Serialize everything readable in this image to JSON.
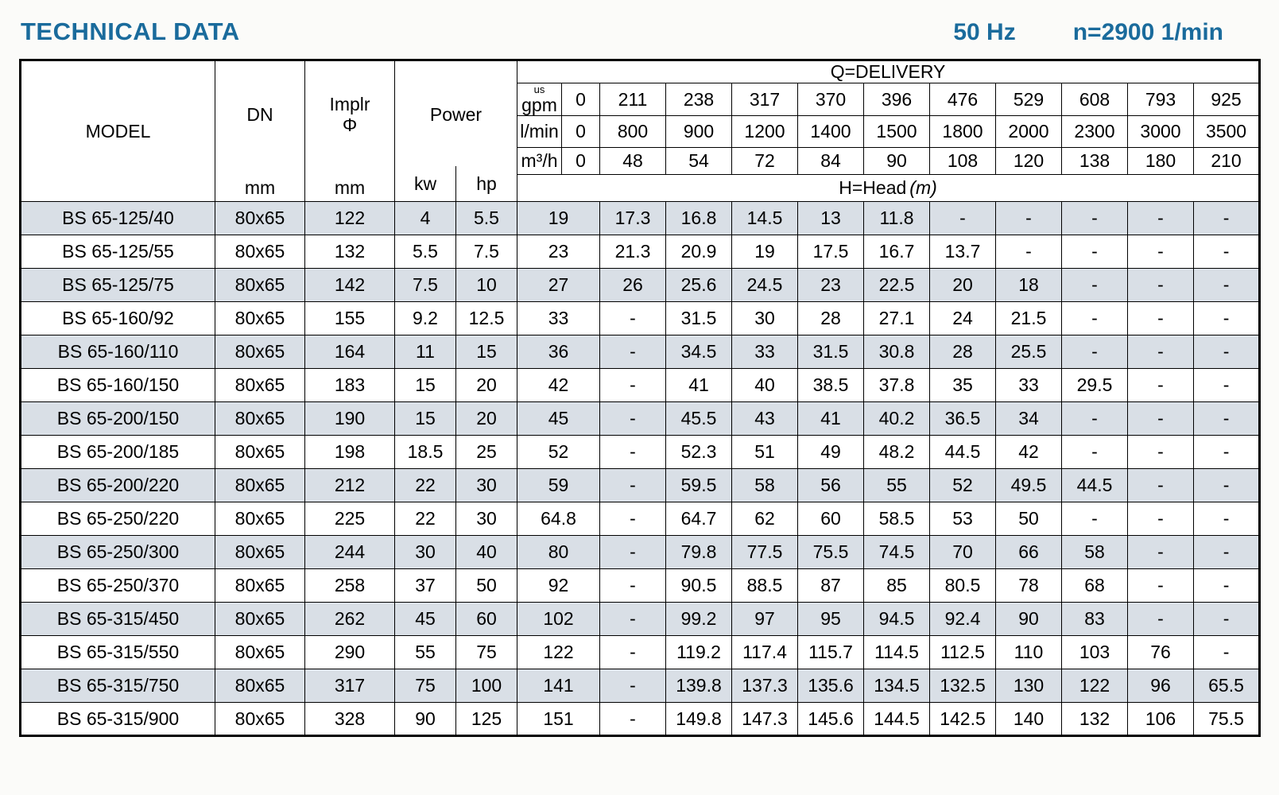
{
  "page": {
    "title": "TECHNICAL DATA",
    "frequency": "50 Hz",
    "speed": "n=2900 1/min"
  },
  "colors": {
    "accent": "#1a6b9c",
    "row_shade": "#d9dfe6",
    "border": "#000000"
  },
  "table": {
    "col_headers": {
      "model": "MODEL",
      "dn": "DN",
      "dn_unit": "mm",
      "implr_line1": "Implr",
      "implr_line2": "Φ",
      "implr_unit": "mm",
      "power": "Power",
      "power_kw": "kw",
      "power_hp": "hp",
      "delivery_title": "Q=DELIVERY",
      "head_title": "H=Head",
      "head_unit": "(m)"
    },
    "unit_rows": [
      {
        "name": "us-gpm",
        "label_top": "us",
        "label": "gpm",
        "values": [
          "0",
          "211",
          "238",
          "317",
          "370",
          "396",
          "476",
          "529",
          "608",
          "793",
          "925"
        ]
      },
      {
        "name": "l-min",
        "label_top": "",
        "label": "l/min",
        "values": [
          "0",
          "800",
          "900",
          "1200",
          "1400",
          "1500",
          "1800",
          "2000",
          "2300",
          "3000",
          "3500"
        ]
      },
      {
        "name": "m3-h",
        "label_top": "",
        "label": "m³/h",
        "values": [
          "0",
          "48",
          "54",
          "72",
          "84",
          "90",
          "108",
          "120",
          "138",
          "180",
          "210"
        ]
      }
    ],
    "rows": [
      {
        "model": "BS 65-125/40",
        "dn": "80x65",
        "implr": "122",
        "kw": "4",
        "hp": "5.5",
        "head": [
          "19",
          "17.3",
          "16.8",
          "14.5",
          "13",
          "11.8",
          "-",
          "-",
          "-",
          "-",
          "-"
        ]
      },
      {
        "model": "BS 65-125/55",
        "dn": "80x65",
        "implr": "132",
        "kw": "5.5",
        "hp": "7.5",
        "head": [
          "23",
          "21.3",
          "20.9",
          "19",
          "17.5",
          "16.7",
          "13.7",
          "-",
          "-",
          "-",
          "-"
        ]
      },
      {
        "model": "BS 65-125/75",
        "dn": "80x65",
        "implr": "142",
        "kw": "7.5",
        "hp": "10",
        "head": [
          "27",
          "26",
          "25.6",
          "24.5",
          "23",
          "22.5",
          "20",
          "18",
          "-",
          "-",
          "-"
        ]
      },
      {
        "model": "BS 65-160/92",
        "dn": "80x65",
        "implr": "155",
        "kw": "9.2",
        "hp": "12.5",
        "head": [
          "33",
          "-",
          "31.5",
          "30",
          "28",
          "27.1",
          "24",
          "21.5",
          "-",
          "-",
          "-"
        ]
      },
      {
        "model": "BS 65-160/110",
        "dn": "80x65",
        "implr": "164",
        "kw": "11",
        "hp": "15",
        "head": [
          "36",
          "-",
          "34.5",
          "33",
          "31.5",
          "30.8",
          "28",
          "25.5",
          "-",
          "-",
          "-"
        ]
      },
      {
        "model": "BS 65-160/150",
        "dn": "80x65",
        "implr": "183",
        "kw": "15",
        "hp": "20",
        "head": [
          "42",
          "-",
          "41",
          "40",
          "38.5",
          "37.8",
          "35",
          "33",
          "29.5",
          "-",
          "-"
        ]
      },
      {
        "model": "BS 65-200/150",
        "dn": "80x65",
        "implr": "190",
        "kw": "15",
        "hp": "20",
        "head": [
          "45",
          "-",
          "45.5",
          "43",
          "41",
          "40.2",
          "36.5",
          "34",
          "-",
          "-",
          "-"
        ]
      },
      {
        "model": "BS 65-200/185",
        "dn": "80x65",
        "implr": "198",
        "kw": "18.5",
        "hp": "25",
        "head": [
          "52",
          "-",
          "52.3",
          "51",
          "49",
          "48.2",
          "44.5",
          "42",
          "-",
          "-",
          "-"
        ]
      },
      {
        "model": "BS 65-200/220",
        "dn": "80x65",
        "implr": "212",
        "kw": "22",
        "hp": "30",
        "head": [
          "59",
          "-",
          "59.5",
          "58",
          "56",
          "55",
          "52",
          "49.5",
          "44.5",
          "-",
          "-"
        ]
      },
      {
        "model": "BS 65-250/220",
        "dn": "80x65",
        "implr": "225",
        "kw": "22",
        "hp": "30",
        "head": [
          "64.8",
          "-",
          "64.7",
          "62",
          "60",
          "58.5",
          "53",
          "50",
          "-",
          "-",
          "-"
        ]
      },
      {
        "model": "BS 65-250/300",
        "dn": "80x65",
        "implr": "244",
        "kw": "30",
        "hp": "40",
        "head": [
          "80",
          "-",
          "79.8",
          "77.5",
          "75.5",
          "74.5",
          "70",
          "66",
          "58",
          "-",
          "-"
        ]
      },
      {
        "model": "BS 65-250/370",
        "dn": "80x65",
        "implr": "258",
        "kw": "37",
        "hp": "50",
        "head": [
          "92",
          "-",
          "90.5",
          "88.5",
          "87",
          "85",
          "80.5",
          "78",
          "68",
          "-",
          "-"
        ]
      },
      {
        "model": "BS 65-315/450",
        "dn": "80x65",
        "implr": "262",
        "kw": "45",
        "hp": "60",
        "head": [
          "102",
          "-",
          "99.2",
          "97",
          "95",
          "94.5",
          "92.4",
          "90",
          "83",
          "-",
          "-"
        ]
      },
      {
        "model": "BS 65-315/550",
        "dn": "80x65",
        "implr": "290",
        "kw": "55",
        "hp": "75",
        "head": [
          "122",
          "-",
          "119.2",
          "117.4",
          "115.7",
          "114.5",
          "112.5",
          "110",
          "103",
          "76",
          "-"
        ]
      },
      {
        "model": "BS 65-315/750",
        "dn": "80x65",
        "implr": "317",
        "kw": "75",
        "hp": "100",
        "head": [
          "141",
          "-",
          "139.8",
          "137.3",
          "135.6",
          "134.5",
          "132.5",
          "130",
          "122",
          "96",
          "65.5"
        ]
      },
      {
        "model": "BS 65-315/900",
        "dn": "80x65",
        "implr": "328",
        "kw": "90",
        "hp": "125",
        "head": [
          "151",
          "-",
          "149.8",
          "147.3",
          "145.6",
          "144.5",
          "142.5",
          "140",
          "132",
          "106",
          "75.5"
        ]
      }
    ]
  }
}
